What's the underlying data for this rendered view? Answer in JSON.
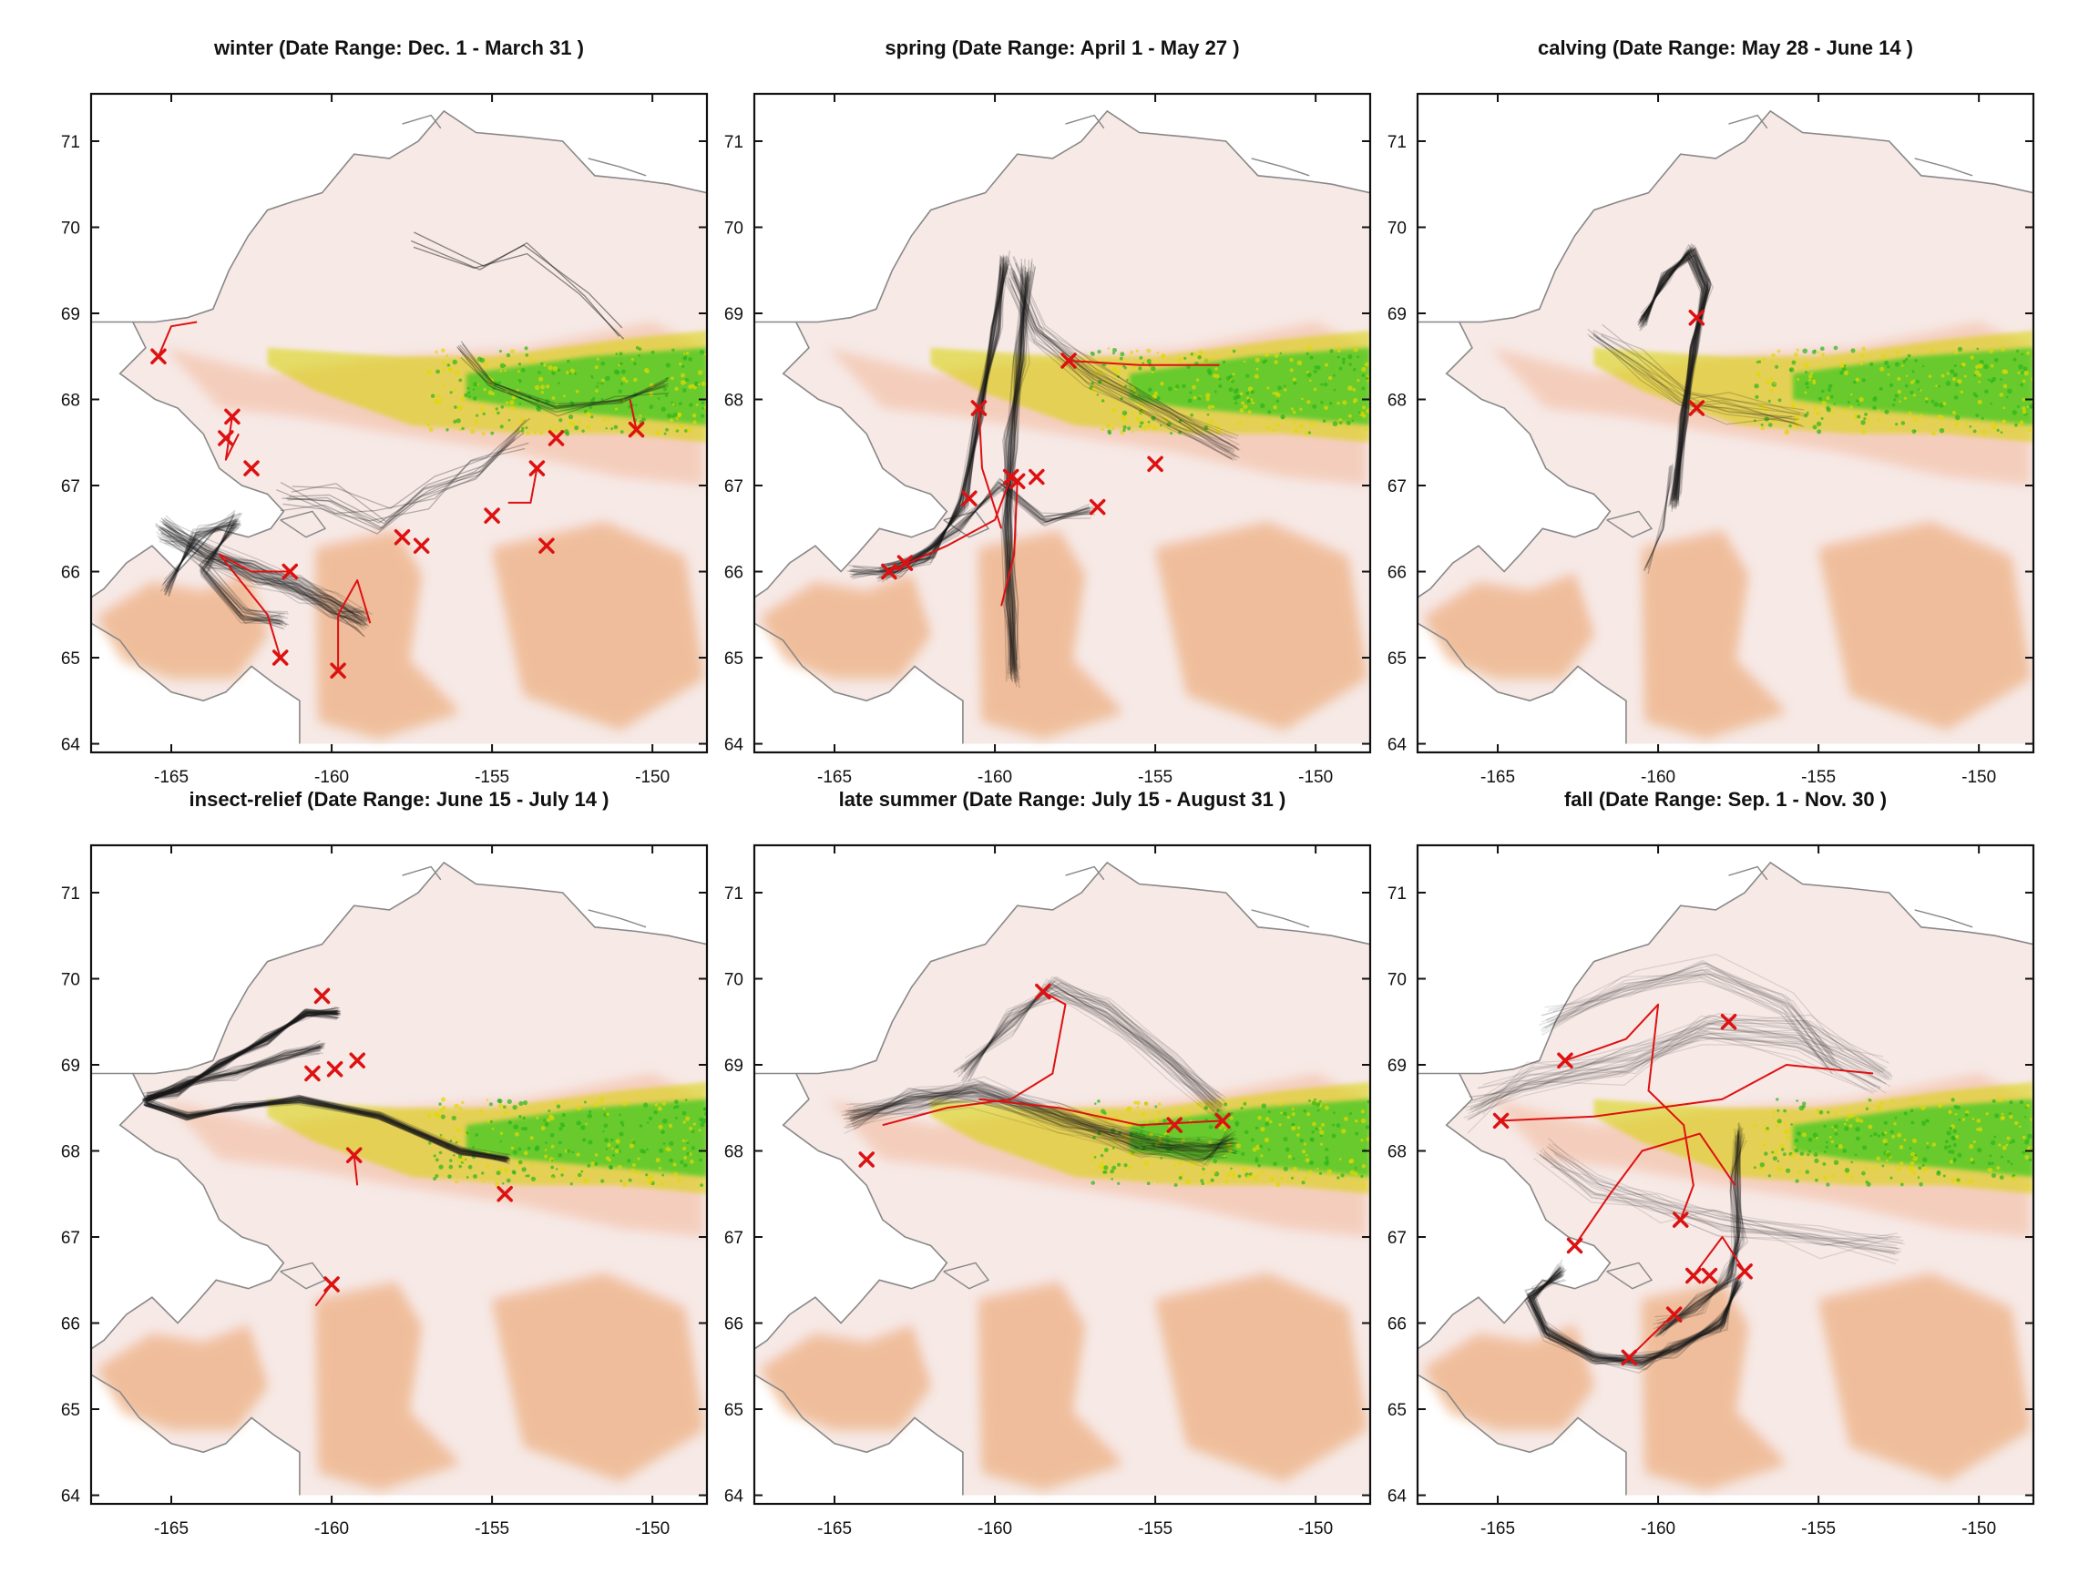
{
  "figure": {
    "x_range": [
      -167.5,
      -148.3
    ],
    "y_range": [
      63.9,
      71.55
    ],
    "x_ticks": [
      -165,
      -160,
      -155,
      -150
    ],
    "y_ticks": [
      64,
      65,
      66,
      67,
      68,
      69,
      70,
      71
    ],
    "x_tick_labels": [
      "-165",
      "-160",
      "-155",
      "-150"
    ],
    "y_tick_labels": [
      "64",
      "65",
      "66",
      "67",
      "68",
      "69",
      "70",
      "71"
    ],
    "track_color": "#1a1a1a",
    "highlight_color": "#dd1111",
    "coast_color": "#888888",
    "land_color": "#f6e9e6",
    "elevation_colors": [
      "#f4c9b5",
      "#e6a15e",
      "#d7d300",
      "#35c81a"
    ]
  },
  "panels": [
    {
      "name": "winter",
      "title": "winter (Date Range:  Dec. 1 - March 31 )",
      "end_markers": [
        [
          -165.4,
          68.5
        ],
        [
          -163.1,
          67.8
        ],
        [
          -163.3,
          67.55
        ],
        [
          -162.5,
          67.2
        ],
        [
          -161.3,
          66.0
        ],
        [
          -161.6,
          65.0
        ],
        [
          -159.8,
          64.85
        ],
        [
          -157.8,
          66.4
        ],
        [
          -157.2,
          66.3
        ],
        [
          -155.0,
          66.65
        ],
        [
          -153.6,
          67.2
        ],
        [
          -153.0,
          67.55
        ],
        [
          -153.3,
          66.3
        ],
        [
          -150.5,
          67.65
        ]
      ]
    },
    {
      "name": "spring",
      "title": "spring (Date Range:  April 1 - May 27 )",
      "end_markers": [
        [
          -163.3,
          66.0
        ],
        [
          -162.8,
          66.1
        ],
        [
          -160.8,
          66.85
        ],
        [
          -160.5,
          67.9
        ],
        [
          -159.5,
          67.1
        ],
        [
          -159.3,
          67.05
        ],
        [
          -158.7,
          67.1
        ],
        [
          -157.7,
          68.45
        ],
        [
          -156.8,
          66.75
        ],
        [
          -155.0,
          67.25
        ]
      ]
    },
    {
      "name": "calving",
      "title": "calving (Date Range:  May 28 - June 14 )",
      "end_markers": [
        [
          -158.8,
          68.95
        ],
        [
          -158.8,
          67.9
        ]
      ]
    },
    {
      "name": "insect-relief",
      "title": "insect-relief (Date Range:  June 15 - July 14 )",
      "end_markers": [
        [
          -160.3,
          69.8
        ],
        [
          -160.6,
          68.9
        ],
        [
          -159.9,
          68.95
        ],
        [
          -159.2,
          69.05
        ],
        [
          -159.3,
          67.95
        ],
        [
          -154.6,
          67.5
        ],
        [
          -160.0,
          66.45
        ]
      ]
    },
    {
      "name": "late summer",
      "title": "late summer (Date Range:  July 15 - August 31 )",
      "end_markers": [
        [
          -164.0,
          67.9
        ],
        [
          -158.5,
          69.85
        ],
        [
          -154.4,
          68.3
        ],
        [
          -152.9,
          68.35
        ]
      ]
    },
    {
      "name": "fall",
      "title": "fall (Date Range:  Sep. 1 - Nov. 30 )",
      "end_markers": [
        [
          -157.8,
          69.5
        ],
        [
          -162.9,
          69.05
        ],
        [
          -164.9,
          68.35
        ],
        [
          -159.3,
          67.2
        ],
        [
          -162.6,
          66.9
        ],
        [
          -158.4,
          66.55
        ],
        [
          -157.3,
          66.6
        ],
        [
          -158.9,
          66.55
        ],
        [
          -159.5,
          66.1
        ],
        [
          -160.9,
          65.6
        ]
      ]
    }
  ]
}
